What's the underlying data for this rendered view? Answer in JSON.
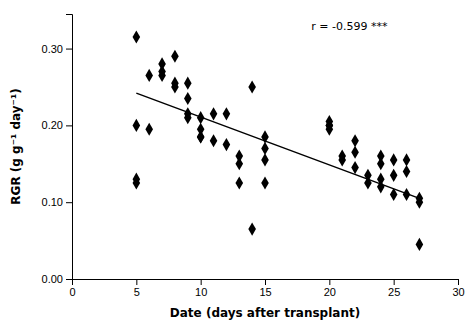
{
  "chart_data": {
    "type": "scatter",
    "xlabel": "Date (days after transplant)",
    "ylabel": "RGR (g g⁻¹ day⁻¹)",
    "annotation": "r = -0.599 ***",
    "series": [
      {
        "type": "scatter",
        "color": "#000000",
        "marker": "diamond",
        "x": [
          5,
          5,
          5,
          5,
          6,
          6,
          7,
          7,
          7,
          8,
          8,
          8,
          9,
          9,
          9,
          9,
          10,
          10,
          10,
          10,
          11,
          11,
          12,
          12,
          13,
          13,
          13,
          14,
          14,
          15,
          15,
          15,
          15,
          20,
          20,
          20,
          20,
          21,
          21,
          22,
          22,
          22,
          23,
          23,
          24,
          24,
          24,
          24,
          25,
          25,
          25,
          26,
          26,
          26,
          27,
          27,
          27
        ],
        "values": [
          0.315,
          0.125,
          0.13,
          0.2,
          0.265,
          0.195,
          0.28,
          0.27,
          0.265,
          0.29,
          0.255,
          0.25,
          0.255,
          0.235,
          0.21,
          0.215,
          0.21,
          0.195,
          0.185,
          0.185,
          0.215,
          0.18,
          0.215,
          0.175,
          0.16,
          0.15,
          0.125,
          0.25,
          0.065,
          0.185,
          0.17,
          0.155,
          0.125,
          0.205,
          0.2,
          0.2,
          0.195,
          0.16,
          0.155,
          0.18,
          0.165,
          0.145,
          0.135,
          0.125,
          0.16,
          0.15,
          0.13,
          0.12,
          0.155,
          0.135,
          0.11,
          0.155,
          0.14,
          0.11,
          0.105,
          0.1,
          0.045
        ]
      },
      {
        "type": "line",
        "color": "#000000",
        "x": [
          5,
          27
        ],
        "values": [
          0.242,
          0.105
        ]
      }
    ],
    "xlim": [
      0,
      30
    ],
    "ylim": [
      0.0,
      0.345
    ],
    "xticks": [
      0,
      5,
      10,
      15,
      20,
      25,
      30
    ],
    "yticks": [
      {
        "value": 0.0,
        "label": "0.00"
      },
      {
        "value": 0.1,
        "label": "0.10"
      },
      {
        "value": 0.2,
        "label": "0.20"
      },
      {
        "value": 0.3,
        "label": "0.30"
      }
    ],
    "grid": false
  }
}
